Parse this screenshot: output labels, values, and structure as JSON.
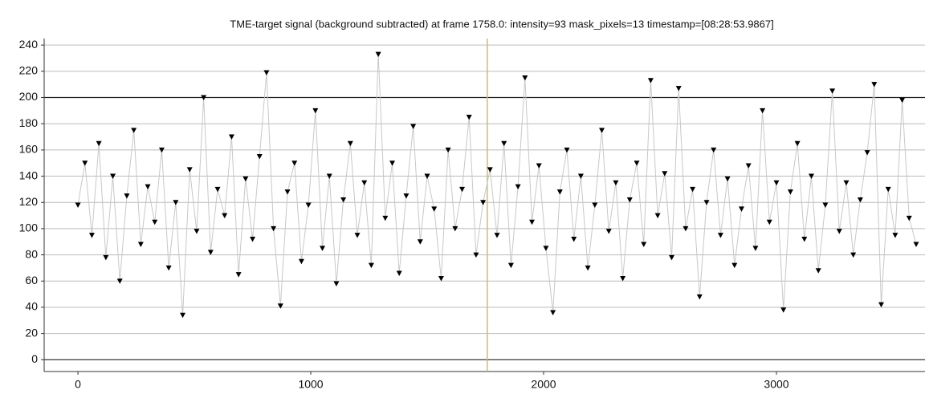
{
  "chart_data": {
    "type": "line",
    "title": "TME-target signal (background subtracted) at frame 1758.0: intensity=93 mask_pixels=13 timestamp=[08:28:53.9867]",
    "cursor_x": 1758,
    "cursor_color": "#c8c070",
    "grid": true,
    "xlim": [
      -145,
      3638
    ],
    "ylim": [
      -9,
      245
    ],
    "xticks": [
      0,
      1000,
      2000,
      3000
    ],
    "yticks": [
      0,
      20,
      40,
      60,
      80,
      100,
      120,
      140,
      160,
      180,
      200,
      220,
      240
    ],
    "x": [
      0,
      30,
      60,
      90,
      120,
      150,
      180,
      210,
      240,
      270,
      300,
      330,
      360,
      390,
      420,
      450,
      480,
      510,
      540,
      570,
      600,
      630,
      660,
      690,
      720,
      750,
      780,
      810,
      840,
      870,
      900,
      930,
      960,
      990,
      1020,
      1050,
      1080,
      1110,
      1140,
      1170,
      1200,
      1230,
      1260,
      1290,
      1320,
      1350,
      1380,
      1410,
      1440,
      1470,
      1500,
      1530,
      1560,
      1590,
      1620,
      1650,
      1680,
      1710,
      1740,
      1770,
      1800,
      1830,
      1860,
      1890,
      1920,
      1950,
      1980,
      2010,
      2040,
      2070,
      2100,
      2130,
      2160,
      2190,
      2220,
      2250,
      2280,
      2310,
      2340,
      2370,
      2400,
      2430,
      2460,
      2490,
      2520,
      2550,
      2580,
      2610,
      2640,
      2670,
      2700,
      2730,
      2760,
      2790,
      2820,
      2850,
      2880,
      2910,
      2940,
      2970,
      3000,
      3030,
      3060,
      3090,
      3120,
      3150,
      3180,
      3210,
      3240,
      3270,
      3300,
      3330,
      3360,
      3390,
      3420,
      3450,
      3480,
      3510,
      3540,
      3570,
      3600
    ],
    "series": [
      {
        "color": "#000000",
        "line_color": "#c8c8c8",
        "values": [
          118,
          150,
          95,
          165,
          78,
          140,
          60,
          125,
          175,
          88,
          132,
          105,
          160,
          70,
          120,
          34,
          145,
          98,
          200,
          82,
          130,
          110,
          170,
          65,
          138,
          92,
          155,
          219,
          100,
          41,
          128,
          150,
          75,
          118,
          190,
          85,
          140,
          58,
          122,
          165,
          95,
          135,
          72,
          233,
          108,
          150,
          66,
          125,
          178,
          90,
          140,
          115,
          62,
          160,
          100,
          130,
          185,
          80,
          120,
          145,
          95,
          165,
          72,
          132,
          215,
          105,
          148,
          85,
          36,
          128,
          160,
          92,
          140,
          70,
          118,
          175,
          98,
          135,
          62,
          122,
          150,
          88,
          213,
          110,
          142,
          78,
          207,
          100,
          130,
          48,
          120,
          160,
          95,
          138,
          72,
          115,
          148,
          85,
          190,
          105,
          135,
          38,
          128,
          165,
          92,
          140,
          68,
          118,
          205,
          98,
          135,
          80,
          122,
          158,
          210,
          42,
          130,
          95,
          198,
          108,
          88
        ]
      }
    ]
  }
}
